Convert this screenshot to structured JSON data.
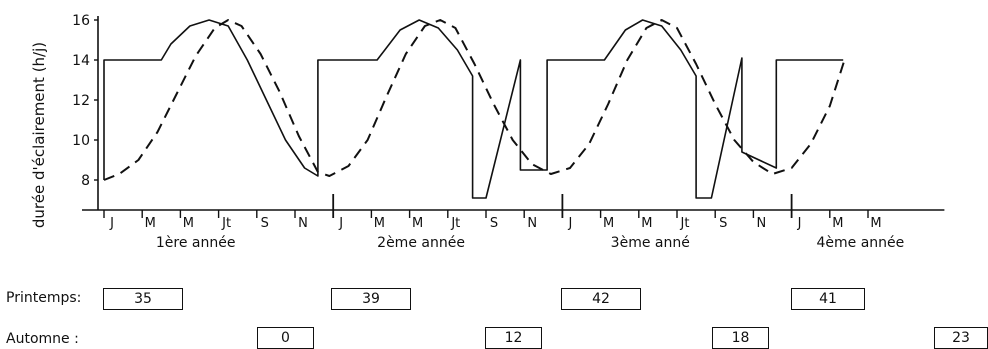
{
  "chart_data": {
    "type": "line",
    "ylabel": "durée d'éclairement (h/j)",
    "yticks": [
      8,
      10,
      12,
      14,
      16
    ],
    "ylim": [
      6.5,
      16
    ],
    "x_unit": "months (1 = J of 1ère année)",
    "xlim": [
      0,
      44
    ],
    "month_ticks": [
      "J",
      "M",
      "M",
      "Jt",
      "S",
      "N",
      "J",
      "M",
      "M",
      "Jt",
      "S",
      "N",
      "J",
      "M",
      "M",
      "Jt",
      "S",
      "N",
      "J",
      "M",
      "M"
    ],
    "year_labels": [
      "1ère année",
      "2ème année",
      "3ème anné",
      "4ème année"
    ],
    "series": [
      {
        "style": "solid",
        "points": [
          [
            0,
            8.0
          ],
          [
            0,
            14.0
          ],
          [
            3,
            14.0
          ],
          [
            3.5,
            14.8
          ],
          [
            4.5,
            15.7
          ],
          [
            5.5,
            16.0
          ],
          [
            6.5,
            15.7
          ],
          [
            7.5,
            14.0
          ],
          [
            8.5,
            12.0
          ],
          [
            9.5,
            10.0
          ],
          [
            10.5,
            8.6
          ],
          [
            11.2,
            8.2
          ],
          [
            11.2,
            14.0
          ],
          [
            14.3,
            14.0
          ],
          [
            15.5,
            15.5
          ],
          [
            16.5,
            16.0
          ],
          [
            17.5,
            15.6
          ],
          [
            18.5,
            14.5
          ],
          [
            19.3,
            13.2
          ],
          [
            19.3,
            7.1
          ],
          [
            20.0,
            7.1
          ],
          [
            21.8,
            14.0
          ],
          [
            21.8,
            8.5
          ],
          [
            23.2,
            8.5
          ],
          [
            23.2,
            14.0
          ],
          [
            26.2,
            14.0
          ],
          [
            27.3,
            15.5
          ],
          [
            28.2,
            16.0
          ],
          [
            29.2,
            15.7
          ],
          [
            30.2,
            14.5
          ],
          [
            31.0,
            13.2
          ],
          [
            31.0,
            7.1
          ],
          [
            31.8,
            7.1
          ],
          [
            33.4,
            14.1
          ],
          [
            33.4,
            9.4
          ],
          [
            35.2,
            8.6
          ],
          [
            35.2,
            14.0
          ],
          [
            38.7,
            14.0
          ]
        ]
      },
      {
        "style": "dashed",
        "points": [
          [
            0,
            8.0
          ],
          [
            0.8,
            8.3
          ],
          [
            1.8,
            9.0
          ],
          [
            2.8,
            10.4
          ],
          [
            3.8,
            12.3
          ],
          [
            4.8,
            14.2
          ],
          [
            5.8,
            15.6
          ],
          [
            6.5,
            16.0
          ],
          [
            7.2,
            15.7
          ],
          [
            8.2,
            14.3
          ],
          [
            9.2,
            12.4
          ],
          [
            10.2,
            10.2
          ],
          [
            11.2,
            8.4
          ],
          [
            11.8,
            8.2
          ],
          [
            12.8,
            8.7
          ],
          [
            13.8,
            10.0
          ],
          [
            14.8,
            12.2
          ],
          [
            15.8,
            14.3
          ],
          [
            16.8,
            15.7
          ],
          [
            17.6,
            16.0
          ],
          [
            18.4,
            15.6
          ],
          [
            19.4,
            13.8
          ],
          [
            20.4,
            11.8
          ],
          [
            21.4,
            10.0
          ],
          [
            22.4,
            8.8
          ],
          [
            23.4,
            8.3
          ],
          [
            24.4,
            8.6
          ],
          [
            25.4,
            9.8
          ],
          [
            26.4,
            11.8
          ],
          [
            27.4,
            14.0
          ],
          [
            28.4,
            15.6
          ],
          [
            29.2,
            16.0
          ],
          [
            30.0,
            15.6
          ],
          [
            31.0,
            13.8
          ],
          [
            32.0,
            11.8
          ],
          [
            33.0,
            10.0
          ],
          [
            34.0,
            8.9
          ],
          [
            35.0,
            8.3
          ],
          [
            36.0,
            8.6
          ],
          [
            37.0,
            9.8
          ],
          [
            38.0,
            11.7
          ],
          [
            38.8,
            14.1
          ]
        ]
      }
    ]
  },
  "printemps": {
    "label": "Printemps:",
    "values": [
      "35",
      "39",
      "42",
      "41"
    ]
  },
  "automne": {
    "label": "Automne :",
    "values": [
      "0",
      "12",
      "18",
      "23"
    ]
  }
}
